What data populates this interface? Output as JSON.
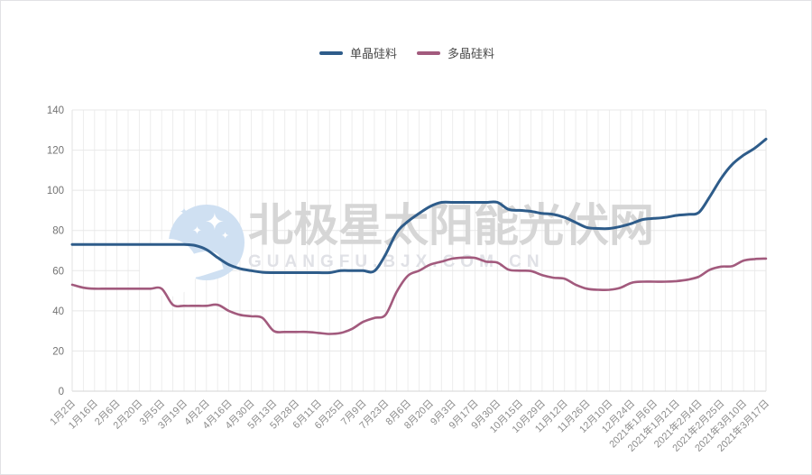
{
  "page": {
    "background": "#ffffff",
    "border_color": "#e2e2e5"
  },
  "legend": {
    "position": "top-center",
    "items": [
      {
        "label": "单晶硅料",
        "color": "#2e5c8a"
      },
      {
        "label": "多晶硅料",
        "color": "#a25a7d"
      }
    ]
  },
  "watermark": {
    "title": "北极星太阳能光伏网",
    "subtitle": "GUANGFU.BJX.COM.CN",
    "logo": "moon-with-stars",
    "title_color": "#d6d6d6",
    "subtitle_color": "#e0e1e6",
    "logo_color": "#cfe0f2"
  },
  "chart_data": {
    "type": "line",
    "title": "",
    "x_axis": {
      "labels": [
        "1月2日",
        "1月16日",
        "2月6日",
        "2月20日",
        "3月5日",
        "3月19日",
        "4月2日",
        "4月16日",
        "4月30日",
        "5月13日",
        "5月28日",
        "6月11日",
        "6月25日",
        "7月9日",
        "7月23日",
        "8月6日",
        "8月20日",
        "9月3日",
        "9月17日",
        "9月30日",
        "10月15日",
        "10月29日",
        "11月12日",
        "11月26日",
        "12月10日",
        "12月24日",
        "2021年1月6日",
        "2021年1月21日",
        "2021年2月4日",
        "2021年2月25日",
        "2021年3月10日",
        "2021年3月17日"
      ],
      "label_every_n_points": 2,
      "total_points": 63,
      "label_rotation_deg": 45
    },
    "y_axis": {
      "min": 0,
      "max": 140,
      "interval": 20,
      "ticks": [
        0,
        20,
        40,
        60,
        80,
        100,
        120,
        140
      ]
    },
    "grid": true,
    "legend_position": "top",
    "series": [
      {
        "name": "单晶硅料",
        "color": "#2e5c8a",
        "values": [
          73,
          73,
          73,
          73,
          73,
          73,
          73,
          73,
          73,
          73,
          73,
          72.5,
          70.5,
          66.5,
          63,
          61,
          60,
          59.2,
          59,
          59,
          59,
          59,
          59,
          59,
          60,
          60,
          60,
          59.8,
          68,
          79,
          84.5,
          88.5,
          92,
          94,
          94,
          94,
          94,
          94,
          94,
          90.5,
          90,
          89.5,
          88.5,
          88,
          86.5,
          84,
          81.5,
          81,
          81,
          82,
          83.5,
          85.5,
          86,
          86.5,
          87.5,
          88,
          89,
          97,
          106,
          113,
          117.5,
          121,
          125.5
        ]
      },
      {
        "name": "多晶硅料",
        "color": "#a25a7d",
        "values": [
          53,
          51.5,
          51,
          51,
          51,
          51,
          51,
          51,
          51,
          43,
          42.5,
          42.5,
          42.5,
          43,
          40,
          38,
          37.3,
          36.5,
          30,
          29.5,
          29.5,
          29.5,
          29,
          28.5,
          29,
          31,
          34.5,
          36.5,
          38,
          49.5,
          57.5,
          60,
          63,
          64.5,
          66,
          66.5,
          66.3,
          64.5,
          64,
          60.5,
          60,
          59.8,
          57.8,
          56.5,
          56,
          53,
          51,
          50.5,
          50.5,
          51.5,
          54,
          54.5,
          54.5,
          54.5,
          54.8,
          55.5,
          57,
          60.5,
          62,
          62.3,
          65,
          65.8,
          66
        ]
      }
    ],
    "style": {
      "grid_v_color": "#ededed",
      "grid_h_color": "#e8e8e8",
      "axis_line_color": "#d6d6d6",
      "plot_border_color": "#e3e3e3",
      "y_label_color": "#737373",
      "x_label_color": "#8c8c8c"
    }
  }
}
